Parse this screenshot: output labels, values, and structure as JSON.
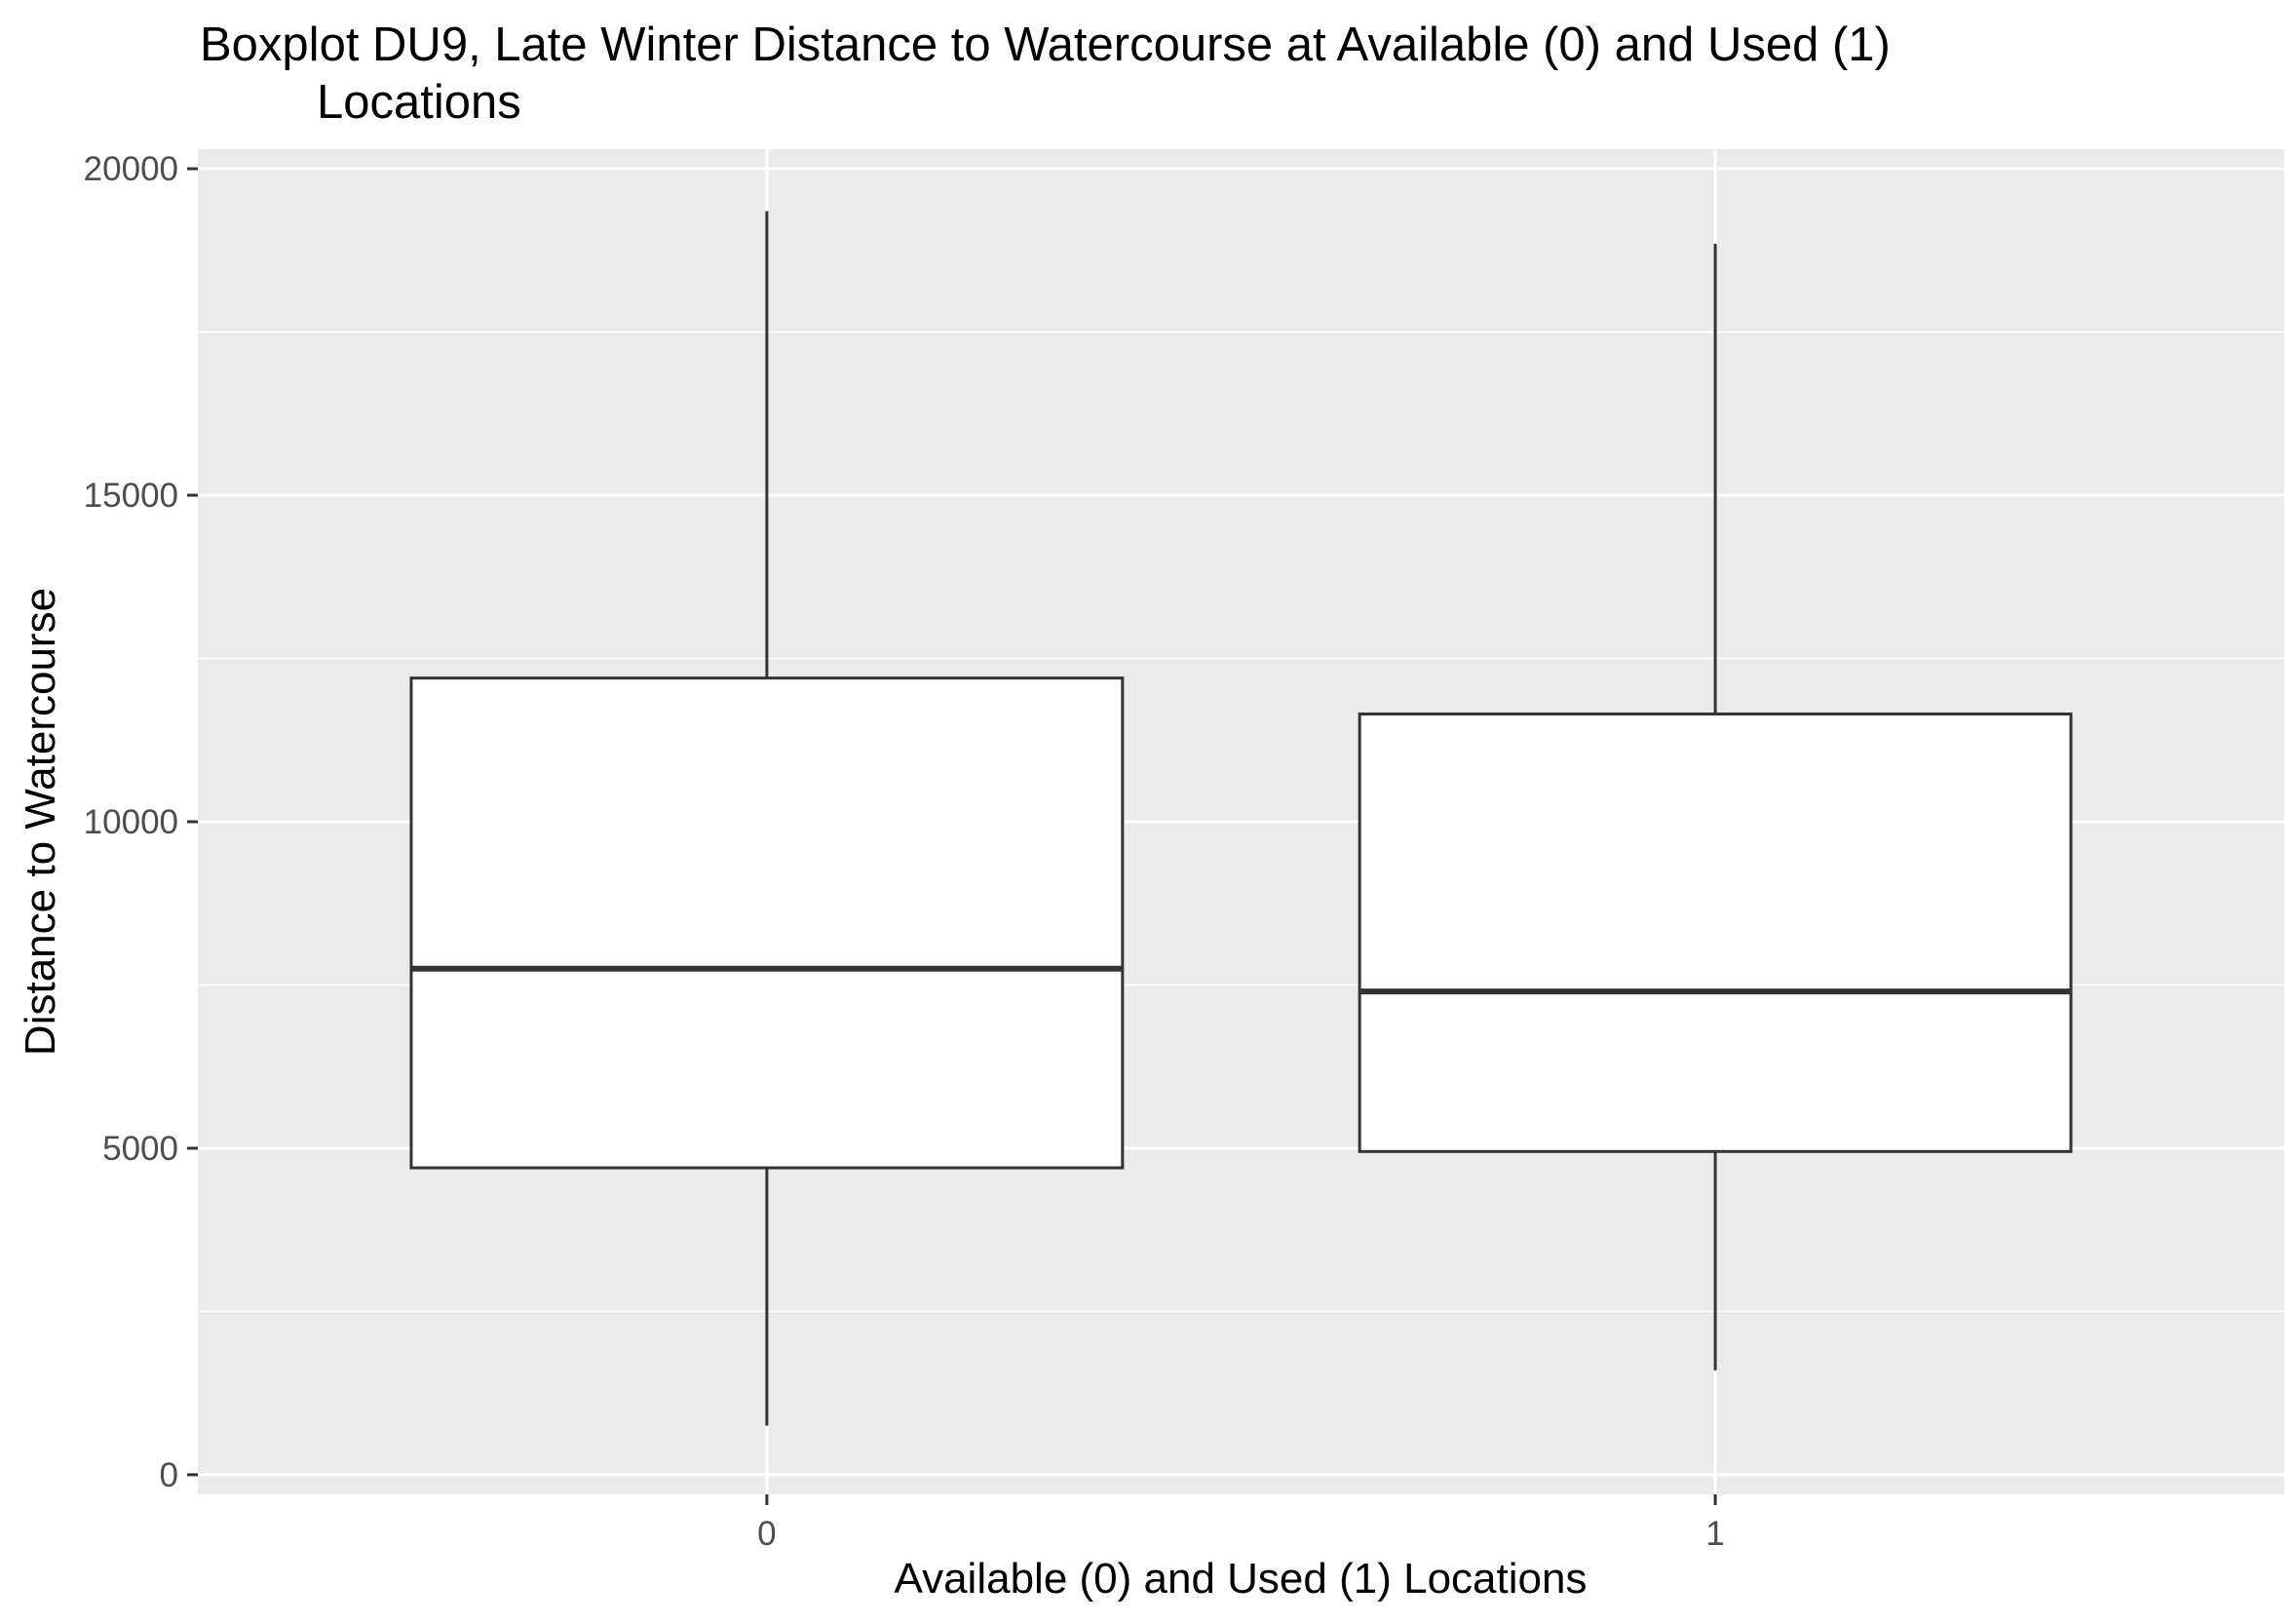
{
  "chart_data": {
    "type": "box",
    "title_line1": "Boxplot DU9, Late Winter Distance to Watercourse at Available (0) and Used (1)",
    "title_line2": "Locations",
    "xlabel": "Available (0) and Used (1) Locations",
    "ylabel": "Distance to Watercourse",
    "categories": [
      "0",
      "1"
    ],
    "ylim": [
      -300,
      20300
    ],
    "yticks": [
      0,
      5000,
      10000,
      15000,
      20000
    ],
    "ytick_labels": [
      "0",
      "5000",
      "10000",
      "15000",
      "20000"
    ],
    "grid": true,
    "colors": {
      "panel": "#ebebeb",
      "grid": "#ffffff",
      "box_fill": "#ffffff",
      "box_stroke": "#333333"
    },
    "boxes": [
      {
        "category": "0",
        "min": 750,
        "q1": 4700,
        "median": 7750,
        "q3": 12200,
        "max": 19350
      },
      {
        "category": "1",
        "min": 1600,
        "q1": 4950,
        "median": 7400,
        "q3": 11650,
        "max": 18850
      }
    ]
  }
}
